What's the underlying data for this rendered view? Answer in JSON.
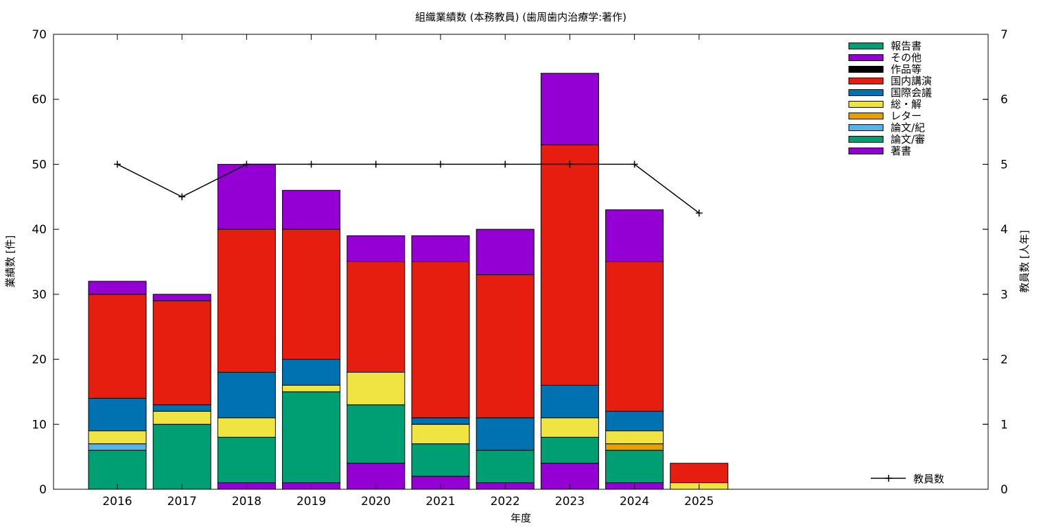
{
  "chart_data": {
    "type": "bar",
    "title": "組織業績数 (本務教員) (歯周歯内治療学:著作)",
    "xlabel": "年度",
    "ylabel": "業績数 [件]",
    "y2label": "教員数 [人年]",
    "ylim": [
      0,
      70
    ],
    "y2lim": [
      0,
      7
    ],
    "yticks": [
      "0",
      "10",
      "20",
      "30",
      "40",
      "50",
      "60",
      "70"
    ],
    "y2ticks": [
      "0",
      "1",
      "2",
      "3",
      "4",
      "5",
      "6",
      "7"
    ],
    "categories": [
      "2016",
      "2017",
      "2018",
      "2019",
      "2020",
      "2021",
      "2022",
      "2023",
      "2024",
      "2025"
    ],
    "stacked": true,
    "legend_position": "top-right",
    "series": [
      {
        "name": "著書",
        "color": "#9400d3",
        "values": [
          0,
          0,
          1,
          1,
          4,
          2,
          1,
          4,
          1,
          0
        ]
      },
      {
        "name": "論文/審",
        "color": "#009e73",
        "values": [
          6,
          10,
          7,
          14,
          9,
          5,
          5,
          4,
          5,
          0
        ]
      },
      {
        "name": "論文/紀",
        "color": "#56b4e9",
        "values": [
          1,
          0,
          0,
          0,
          0,
          0,
          0,
          0,
          0,
          0
        ]
      },
      {
        "name": "レター",
        "color": "#e69f00",
        "values": [
          0,
          0,
          0,
          0,
          0,
          0,
          0,
          0,
          1,
          0
        ]
      },
      {
        "name": "総・解",
        "color": "#f0e442",
        "values": [
          2,
          2,
          3,
          1,
          5,
          3,
          0,
          3,
          2,
          1
        ]
      },
      {
        "name": "国際会議",
        "color": "#0072b2",
        "values": [
          5,
          1,
          7,
          4,
          0,
          1,
          5,
          5,
          3,
          0
        ]
      },
      {
        "name": "国内講演",
        "color": "#e51e10",
        "values": [
          16,
          16,
          22,
          20,
          17,
          24,
          22,
          37,
          23,
          3
        ]
      },
      {
        "name": "作品等",
        "color": "#000000",
        "values": [
          0,
          0,
          0,
          0,
          0,
          0,
          0,
          0,
          0,
          0
        ]
      },
      {
        "name": "その他",
        "color": "#9400d3",
        "values": [
          2,
          1,
          10,
          6,
          4,
          4,
          7,
          11,
          8,
          0
        ]
      },
      {
        "name": "報告書",
        "color": "#009e73",
        "values": [
          0,
          0,
          0,
          0,
          0,
          0,
          0,
          0,
          0,
          0
        ]
      }
    ],
    "line_series": {
      "name": "教員数",
      "color": "#000000",
      "axis": "y2",
      "values": [
        5,
        4.5,
        5,
        5,
        5,
        5,
        5,
        5,
        5,
        4.25
      ]
    }
  }
}
